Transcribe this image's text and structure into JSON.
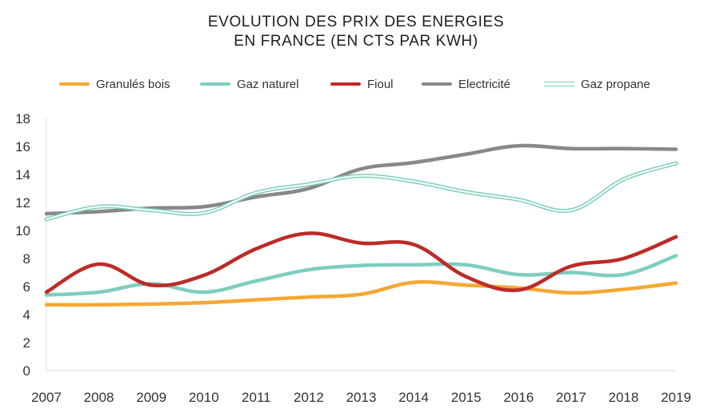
{
  "chart_data": {
    "type": "line",
    "title_lines": [
      "EVOLUTION DES PRIX DES ENERGIES",
      "EN FRANCE (EN CTS PAR KWH)"
    ],
    "xlabel": "",
    "ylabel": "",
    "ylim": [
      0,
      18
    ],
    "yticks": [
      0,
      2,
      4,
      6,
      8,
      10,
      12,
      14,
      16,
      18
    ],
    "grid": false,
    "legend_position": "top",
    "categories": [
      "2007",
      "2008",
      "2009",
      "2010",
      "2011",
      "2012",
      "2013",
      "2014",
      "2015",
      "2016",
      "2017",
      "2018",
      "2019"
    ],
    "series": [
      {
        "name": "Granulés bois",
        "color": "#f5a833",
        "style": "thick",
        "values": [
          4.7,
          4.7,
          4.75,
          4.85,
          5.05,
          5.25,
          5.45,
          6.3,
          6.1,
          5.9,
          5.55,
          5.8,
          6.25
        ]
      },
      {
        "name": "Gaz naturel",
        "color": "#7ecdbf",
        "style": "thick",
        "values": [
          5.4,
          5.6,
          6.2,
          5.6,
          6.4,
          7.2,
          7.5,
          7.55,
          7.55,
          6.85,
          7.0,
          6.85,
          8.2
        ]
      },
      {
        "name": "Fioul",
        "color": "#bd2a27",
        "style": "thick",
        "values": [
          5.6,
          7.6,
          6.1,
          6.8,
          8.7,
          9.8,
          9.1,
          9.0,
          6.7,
          5.75,
          7.45,
          8.0,
          9.55
        ]
      },
      {
        "name": "Electricité",
        "color": "#888888",
        "style": "thick",
        "values": [
          11.2,
          11.35,
          11.6,
          11.7,
          12.4,
          13.0,
          14.4,
          14.85,
          15.45,
          16.05,
          15.85,
          15.85,
          15.8
        ]
      },
      {
        "name": "Gaz propane",
        "color": "#7ecdbf",
        "style": "double",
        "values": [
          10.8,
          11.7,
          11.45,
          11.25,
          12.7,
          13.3,
          13.9,
          13.5,
          12.75,
          12.2,
          11.45,
          13.65,
          14.8
        ]
      }
    ]
  }
}
